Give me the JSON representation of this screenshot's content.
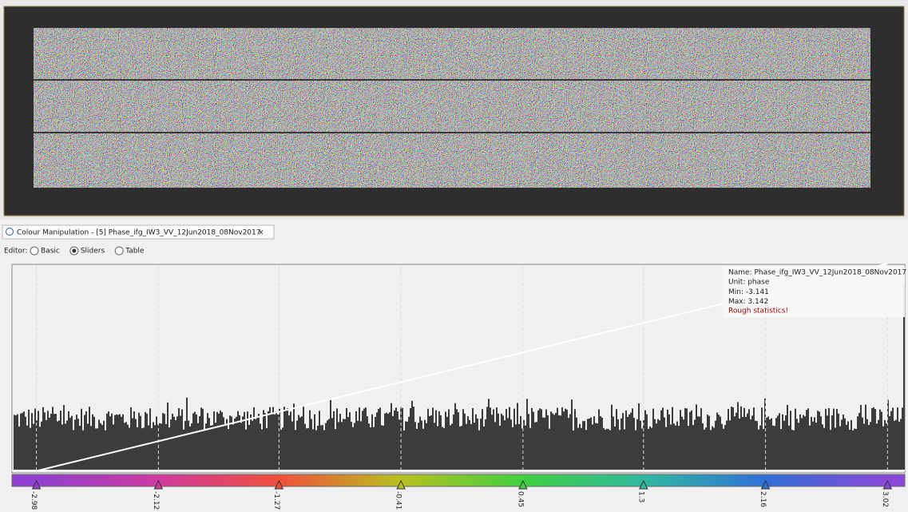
{
  "tab": {
    "title": "Colour Manipulation - [5] Phase_ifg_IW3_VV_12Jun2018_08Nov2017",
    "close": "×"
  },
  "editor": {
    "label": "Editor:",
    "options": [
      "Basic",
      "Sliders",
      "Table"
    ],
    "selected": 1
  },
  "info": {
    "name": "Name: Phase_ifg_IW3_VV_12Jun2018_08Nov2017",
    "unit": "Unit: phase",
    "min": {
      "label": "Min:",
      "value": -3.141
    },
    "max": {
      "label": "Max:",
      "value": 3.142
    },
    "note": "Rough statistics!"
  },
  "sliders": [
    {
      "value": -2.98,
      "color": "#9040d0"
    },
    {
      "value": -2.12,
      "color": "#d03aa0"
    },
    {
      "value": -1.27,
      "color": "#f0503a"
    },
    {
      "value": -0.41,
      "color": "#b8c020"
    },
    {
      "value": 0.45,
      "color": "#40d040"
    },
    {
      "value": 1.3,
      "color": "#30b8a0"
    },
    {
      "value": 2.16,
      "color": "#3070d8"
    },
    {
      "value": 3.02,
      "color": "#8a48d8"
    }
  ]
}
